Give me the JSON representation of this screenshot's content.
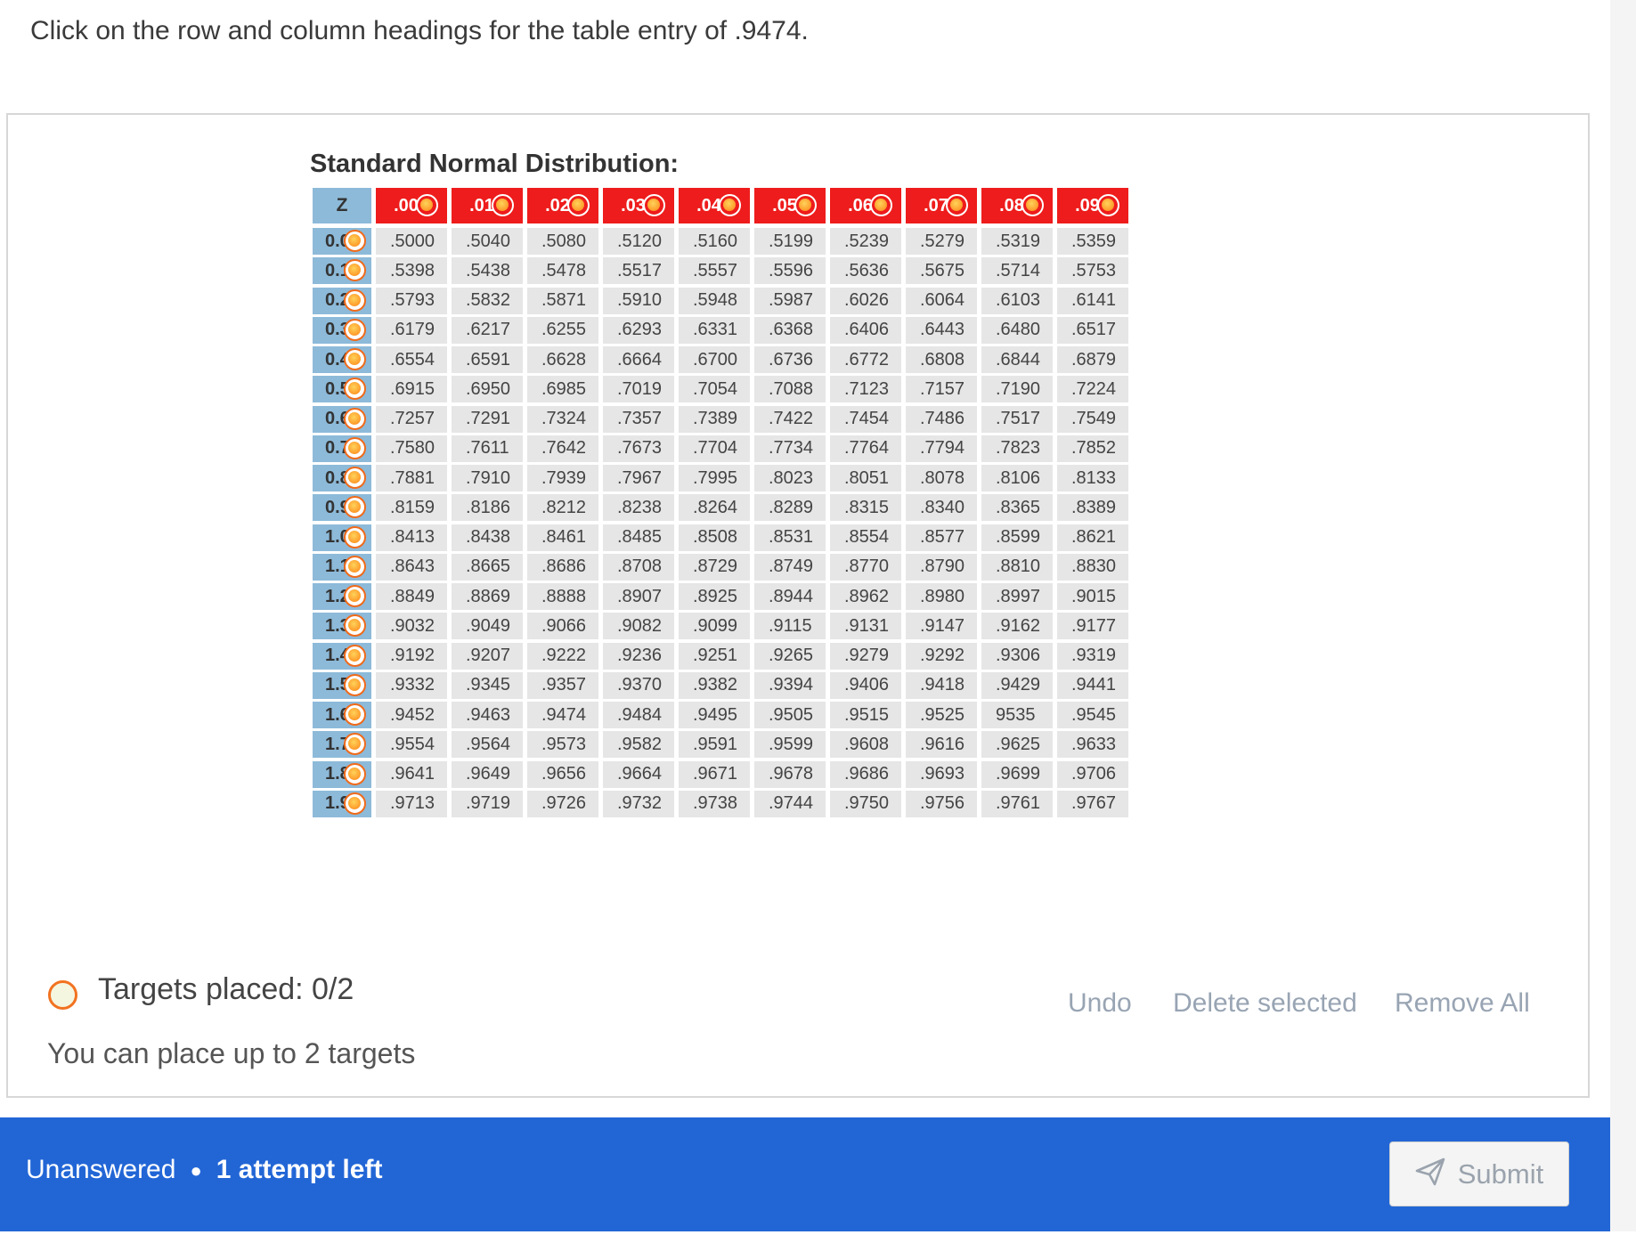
{
  "question": {
    "prompt": "Click on the row and column headings for the table entry of .9474."
  },
  "table": {
    "title": "Standard Normal Distribution:",
    "corner_label": "Z",
    "column_headers": [
      ".00",
      ".01",
      ".02",
      ".03",
      ".04",
      ".05",
      ".06",
      ".07",
      ".08",
      ".09"
    ],
    "rows": [
      {
        "z": "0.0",
        "values": [
          ".5000",
          ".5040",
          ".5080",
          ".5120",
          ".5160",
          ".5199",
          ".5239",
          ".5279",
          ".5319",
          ".5359"
        ]
      },
      {
        "z": "0.1",
        "values": [
          ".5398",
          ".5438",
          ".5478",
          ".5517",
          ".5557",
          ".5596",
          ".5636",
          ".5675",
          ".5714",
          ".5753"
        ]
      },
      {
        "z": "0.2",
        "values": [
          ".5793",
          ".5832",
          ".5871",
          ".5910",
          ".5948",
          ".5987",
          ".6026",
          ".6064",
          ".6103",
          ".6141"
        ]
      },
      {
        "z": "0.3",
        "values": [
          ".6179",
          ".6217",
          ".6255",
          ".6293",
          ".6331",
          ".6368",
          ".6406",
          ".6443",
          ".6480",
          ".6517"
        ]
      },
      {
        "z": "0.4",
        "values": [
          ".6554",
          ".6591",
          ".6628",
          ".6664",
          ".6700",
          ".6736",
          ".6772",
          ".6808",
          ".6844",
          ".6879"
        ]
      },
      {
        "z": "0.5",
        "values": [
          ".6915",
          ".6950",
          ".6985",
          ".7019",
          ".7054",
          ".7088",
          ".7123",
          ".7157",
          ".7190",
          ".7224"
        ]
      },
      {
        "z": "0.6",
        "values": [
          ".7257",
          ".7291",
          ".7324",
          ".7357",
          ".7389",
          ".7422",
          ".7454",
          ".7486",
          ".7517",
          ".7549"
        ]
      },
      {
        "z": "0.7",
        "values": [
          ".7580",
          ".7611",
          ".7642",
          ".7673",
          ".7704",
          ".7734",
          ".7764",
          ".7794",
          ".7823",
          ".7852"
        ]
      },
      {
        "z": "0.8",
        "values": [
          ".7881",
          ".7910",
          ".7939",
          ".7967",
          ".7995",
          ".8023",
          ".8051",
          ".8078",
          ".8106",
          ".8133"
        ]
      },
      {
        "z": "0.9",
        "values": [
          ".8159",
          ".8186",
          ".8212",
          ".8238",
          ".8264",
          ".8289",
          ".8315",
          ".8340",
          ".8365",
          ".8389"
        ]
      },
      {
        "z": "1.0",
        "values": [
          ".8413",
          ".8438",
          ".8461",
          ".8485",
          ".8508",
          ".8531",
          ".8554",
          ".8577",
          ".8599",
          ".8621"
        ]
      },
      {
        "z": "1.1",
        "values": [
          ".8643",
          ".8665",
          ".8686",
          ".8708",
          ".8729",
          ".8749",
          ".8770",
          ".8790",
          ".8810",
          ".8830"
        ]
      },
      {
        "z": "1.2",
        "values": [
          ".8849",
          ".8869",
          ".8888",
          ".8907",
          ".8925",
          ".8944",
          ".8962",
          ".8980",
          ".8997",
          ".9015"
        ]
      },
      {
        "z": "1.3",
        "values": [
          ".9032",
          ".9049",
          ".9066",
          ".9082",
          ".9099",
          ".9115",
          ".9131",
          ".9147",
          ".9162",
          ".9177"
        ]
      },
      {
        "z": "1.4",
        "values": [
          ".9192",
          ".9207",
          ".9222",
          ".9236",
          ".9251",
          ".9265",
          ".9279",
          ".9292",
          ".9306",
          ".9319"
        ]
      },
      {
        "z": "1.5",
        "values": [
          ".9332",
          ".9345",
          ".9357",
          ".9370",
          ".9382",
          ".9394",
          ".9406",
          ".9418",
          ".9429",
          ".9441"
        ]
      },
      {
        "z": "1.6",
        "values": [
          ".9452",
          ".9463",
          ".9474",
          ".9484",
          ".9495",
          ".9505",
          ".9515",
          ".9525",
          "9535",
          ".9545"
        ]
      },
      {
        "z": "1.7",
        "values": [
          ".9554",
          ".9564",
          ".9573",
          ".9582",
          ".9591",
          ".9599",
          ".9608",
          ".9616",
          ".9625",
          ".9633"
        ]
      },
      {
        "z": "1.8",
        "values": [
          ".9641",
          ".9649",
          ".9656",
          ".9664",
          ".9671",
          ".9678",
          ".9686",
          ".9693",
          ".9699",
          ".9706"
        ]
      },
      {
        "z": "1.9",
        "values": [
          ".9713",
          ".9719",
          ".9726",
          ".9732",
          ".9738",
          ".9744",
          ".9750",
          ".9756",
          ".9761",
          ".9767"
        ]
      }
    ]
  },
  "targets": {
    "placed_text": "Targets placed: 0/2",
    "hint": "You can place up to 2 targets",
    "icon": "target-circle-icon"
  },
  "actions": {
    "undo": "Undo",
    "delete_selected": "Delete selected",
    "remove_all": "Remove All"
  },
  "footer": {
    "status": "Unanswered",
    "attempts": "1 attempt left",
    "submit_label": "Submit",
    "submit_icon": "paper-plane-icon"
  },
  "colors": {
    "header_red": "#ee1c1c",
    "row_label_blue": "#8dbad9",
    "footer_blue": "#2266d6",
    "target_orange": "#f06a1a"
  }
}
